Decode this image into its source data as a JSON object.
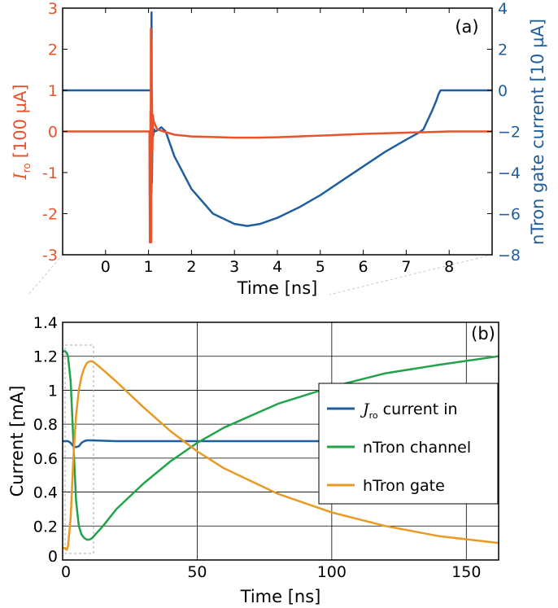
{
  "chart_data": [
    {
      "panel": "(a)",
      "type": "line",
      "xlabel": "Time [ns]",
      "ylabel_left_sym": "I",
      "ylabel_left_sub": "ro",
      "ylabel_left_unit": "[100 µA]",
      "ylabel_right": "nTron gate current [10 µA]",
      "xlim": [
        -1,
        9
      ],
      "ylim_left": [
        -3,
        3
      ],
      "ylim_right": [
        -8,
        4
      ],
      "x_ticks": [
        0,
        1,
        2,
        3,
        4,
        5,
        6,
        7,
        8
      ],
      "y_left_ticks": [
        3,
        2,
        1,
        0,
        -1,
        -2,
        -3
      ],
      "y_left_tick_labels": [
        "3",
        "2",
        "1",
        "0",
        "-1",
        "-2",
        "-3"
      ],
      "y_right_ticks": [
        4,
        2,
        0,
        -2,
        -4,
        -6,
        -8
      ],
      "y_right_tick_labels": [
        "4",
        "2",
        "0",
        "−2",
        "−4",
        "−6",
        "−8"
      ],
      "colors": {
        "left": "#e8532b",
        "right": "#1f5fa0"
      },
      "series": [
        {
          "axis": "left",
          "x": [
            -1,
            1.0,
            1.02,
            1.03,
            1.04,
            1.045,
            1.05,
            1.055,
            1.06,
            1.065,
            1.07,
            1.08,
            1.09,
            1.1,
            1.12,
            1.2,
            1.35,
            1.6,
            2,
            3,
            3.5,
            4,
            5,
            6,
            7,
            7.4,
            8,
            9
          ],
          "y": [
            0,
            0,
            0,
            -2.7,
            -1.5,
            0.5,
            -2.5,
            2.5,
            -2.7,
            2.2,
            -1.5,
            1.0,
            -0.5,
            0.4,
            0.25,
            0.05,
            0.0,
            -0.08,
            -0.12,
            -0.15,
            -0.15,
            -0.14,
            -0.1,
            -0.06,
            -0.03,
            -0.02,
            0.0,
            0.0
          ]
        },
        {
          "axis": "right",
          "x": [
            -1,
            1.0,
            1.04,
            1.06,
            1.07,
            1.08,
            1.09,
            1.1,
            1.11,
            1.12,
            1.13,
            1.15,
            1.2,
            1.3,
            1.4,
            1.6,
            2,
            2.5,
            3,
            3.3,
            3.6,
            4,
            4.5,
            5,
            5.5,
            6,
            6.5,
            7,
            7.3,
            7.4,
            7.6,
            7.7,
            7.75,
            7.8,
            7.9,
            8,
            9
          ],
          "y": [
            0,
            0,
            0,
            0,
            3.8,
            -4.5,
            -2.5,
            -1.8,
            -2.2,
            -2.0,
            -1.9,
            -2.0,
            -1.95,
            -1.8,
            -2.0,
            -3.2,
            -4.8,
            -6.0,
            -6.5,
            -6.6,
            -6.5,
            -6.2,
            -5.7,
            -5.1,
            -4.4,
            -3.7,
            -3.0,
            -2.4,
            -2.05,
            -1.9,
            -1.0,
            -0.5,
            -0.2,
            0,
            0,
            0,
            0
          ]
        }
      ]
    },
    {
      "panel": "(b)",
      "type": "line",
      "xlabel": "Time [ns]",
      "ylabel": "Current [mA]",
      "xlim": [
        0,
        162
      ],
      "ylim": [
        0,
        1.4
      ],
      "x_ticks": [
        0,
        50,
        100,
        150
      ],
      "x_tick_labels": [
        "0",
        "50",
        "100",
        "150"
      ],
      "y_ticks": [
        0,
        0.2,
        0.4,
        0.6,
        0.8,
        1.0,
        1.2,
        1.4
      ],
      "y_tick_labels": [
        "0",
        "0.2",
        "0.4",
        "0.6",
        "0.8",
        "1",
        "1.2",
        "1.4"
      ],
      "grid": true,
      "legend_position": "center-right",
      "legend_entries": [
        {
          "sym": "J",
          "sub": "ro",
          "text": " current in",
          "color": "#1f5fa0"
        },
        {
          "sym": "",
          "sub": "",
          "text": "nTron channel",
          "color": "#22a34a"
        },
        {
          "sym": "",
          "sub": "",
          "text": "hTron gate",
          "color": "#e89a22"
        }
      ],
      "series": [
        {
          "name": "current in",
          "color": "#1f5fa0",
          "x": [
            0,
            1.0,
            1.2,
            2.0,
            3.0,
            4.0,
            5.0,
            6.0,
            7.0,
            8.0,
            9.0,
            10,
            20,
            50,
            100,
            162
          ],
          "y": [
            0.7,
            0.7,
            0.7,
            0.7,
            0.69,
            0.67,
            0.665,
            0.67,
            0.69,
            0.7,
            0.705,
            0.705,
            0.7,
            0.7,
            0.7,
            0.7
          ]
        },
        {
          "name": "nTron channel",
          "color": "#22a34a",
          "x": [
            0,
            1.0,
            1.5,
            2.0,
            3.0,
            4.0,
            5.0,
            6.0,
            7.0,
            8.0,
            9.0,
            10.0,
            11.0,
            15,
            20,
            30,
            40,
            50,
            60,
            80,
            100,
            120,
            140,
            162
          ],
          "y": [
            1.23,
            1.23,
            1.22,
            1.2,
            1.05,
            0.7,
            0.35,
            0.2,
            0.15,
            0.13,
            0.12,
            0.12,
            0.13,
            0.2,
            0.3,
            0.45,
            0.58,
            0.69,
            0.78,
            0.92,
            1.02,
            1.1,
            1.15,
            1.2
          ]
        },
        {
          "name": "hTron gate",
          "color": "#e89a22",
          "x": [
            0,
            1.0,
            1.5,
            2.0,
            3.0,
            4.0,
            5.0,
            6.0,
            7.0,
            8.0,
            9.0,
            10.0,
            11.0,
            12,
            15,
            20,
            30,
            40,
            50,
            60,
            80,
            100,
            120,
            140,
            162
          ],
          "y": [
            0.07,
            0.07,
            0.06,
            0.08,
            0.25,
            0.6,
            0.85,
            1.0,
            1.08,
            1.13,
            1.16,
            1.17,
            1.17,
            1.16,
            1.12,
            1.05,
            0.9,
            0.76,
            0.64,
            0.54,
            0.39,
            0.28,
            0.2,
            0.14,
            0.1
          ]
        }
      ]
    }
  ]
}
